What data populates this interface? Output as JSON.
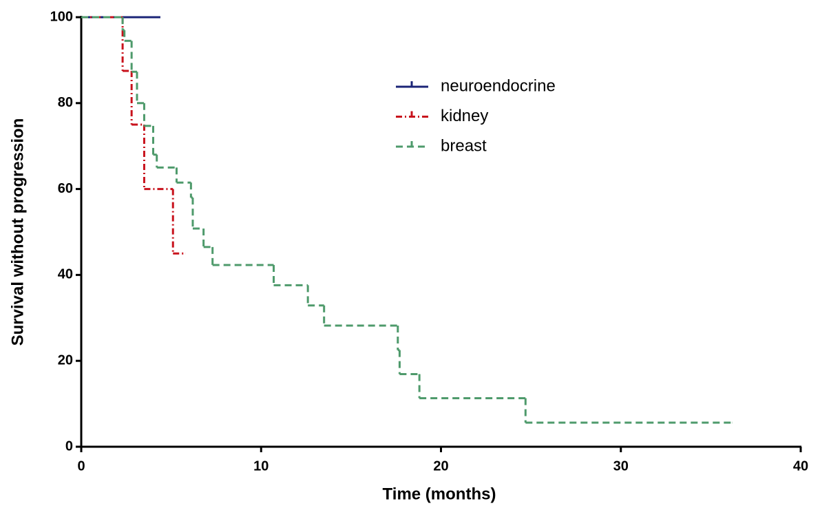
{
  "chart_data": {
    "type": "step",
    "xlabel": "Time (months)",
    "ylabel": "Survival without progression",
    "xlim": [
      0,
      40
    ],
    "xticks": [
      0,
      10,
      20,
      30,
      40
    ],
    "ylim": [
      0,
      100
    ],
    "yticks": [
      0,
      20,
      40,
      60,
      80,
      100
    ],
    "series": [
      {
        "name": "neuroendocrine",
        "color": "#1b2477",
        "dash": "solid",
        "x": [
          0,
          4.4
        ],
        "values": [
          100,
          100
        ]
      },
      {
        "name": "kidney",
        "color": "#c8121c",
        "dash": "dashdot",
        "x": [
          0,
          2.3,
          2.8,
          3.5,
          5.1,
          5.8
        ],
        "values": [
          100,
          87.5,
          75,
          60,
          45,
          45
        ]
      },
      {
        "name": "breast",
        "color": "#4e9a6b",
        "dash": "dashed",
        "x": [
          0,
          2.3,
          2.4,
          2.8,
          3.1,
          3.5,
          4.0,
          4.2,
          5.3,
          6.1,
          6.2,
          6.8,
          7.3,
          10.7,
          12.6,
          13.5,
          17.6,
          17.7,
          18.8,
          24.7,
          36.2
        ],
        "values": [
          100,
          97,
          94.5,
          87.3,
          80,
          74.7,
          68,
          65,
          61.5,
          58,
          50.8,
          46.5,
          42.3,
          37.6,
          32.9,
          28.2,
          22.5,
          16.9,
          11.3,
          5.6,
          5.6
        ]
      }
    ]
  }
}
